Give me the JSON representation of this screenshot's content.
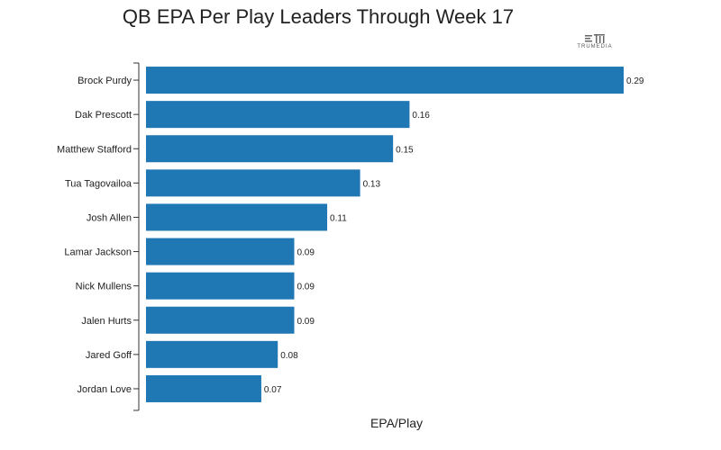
{
  "title": "QB EPA Per Play Leaders Through Week 17",
  "logo_text": "TRUMEDIA",
  "colors": {
    "bar": "#1f77b4",
    "axis": "#333333",
    "text": "#222222"
  },
  "chart_data": {
    "type": "bar",
    "orientation": "horizontal",
    "title": "QB EPA Per Play Leaders Through Week 17",
    "xlabel": "EPA/Play",
    "ylabel": "",
    "xlim": [
      0,
      0.29
    ],
    "categories": [
      "Brock Purdy",
      "Dak Prescott",
      "Matthew Stafford",
      "Tua Tagovailoa",
      "Josh Allen",
      "Lamar Jackson",
      "Nick Mullens",
      "Jalen Hurts",
      "Jared Goff",
      "Jordan Love"
    ],
    "values": [
      0.29,
      0.16,
      0.15,
      0.13,
      0.11,
      0.09,
      0.09,
      0.09,
      0.08,
      0.07
    ],
    "value_labels": [
      "0.29",
      "0.16",
      "0.15",
      "0.13",
      "0.11",
      "0.09",
      "0.09",
      "0.09",
      "0.08",
      "0.07"
    ],
    "grid": false,
    "legend": "none"
  }
}
